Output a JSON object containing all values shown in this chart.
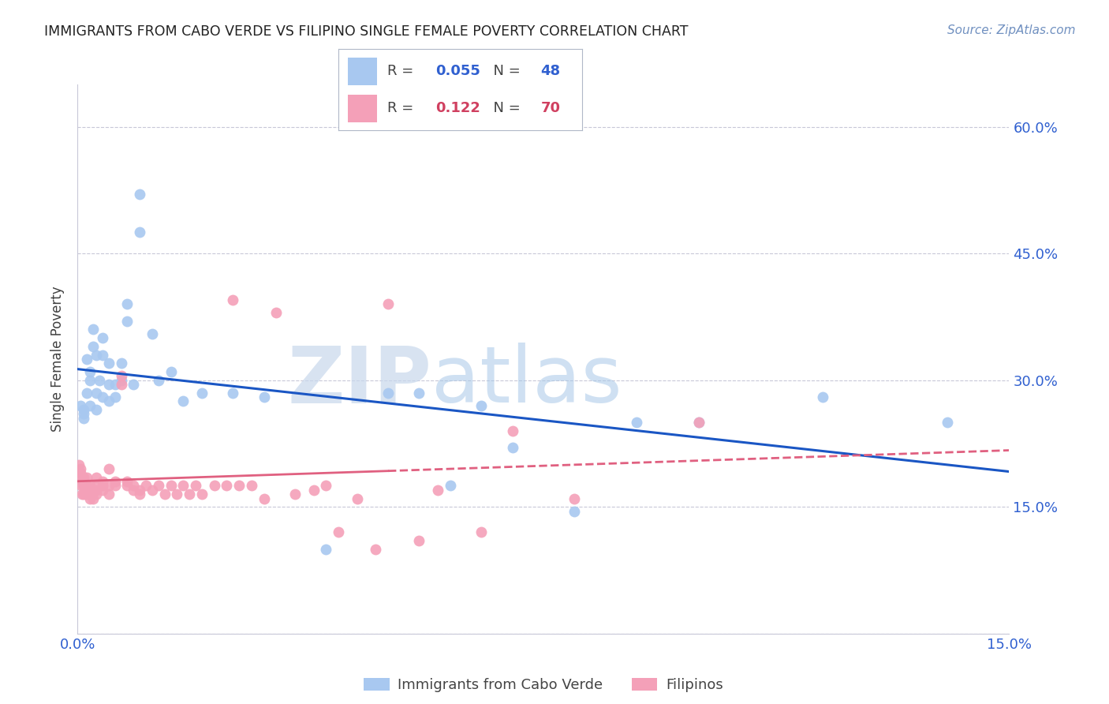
{
  "title": "IMMIGRANTS FROM CABO VERDE VS FILIPINO SINGLE FEMALE POVERTY CORRELATION CHART",
  "source": "Source: ZipAtlas.com",
  "ylabel": "Single Female Poverty",
  "yticks": [
    0.0,
    0.15,
    0.3,
    0.45,
    0.6
  ],
  "ytick_labels": [
    "",
    "15.0%",
    "30.0%",
    "45.0%",
    "60.0%"
  ],
  "xlim": [
    0.0,
    0.15
  ],
  "ylim": [
    0.0,
    0.65
  ],
  "legend1_r": "0.055",
  "legend1_n": "48",
  "legend2_r": "0.122",
  "legend2_n": "70",
  "blue_color": "#A8C8F0",
  "pink_color": "#F4A0B8",
  "line_blue": "#1A56C4",
  "line_pink": "#E06080",
  "watermark_zip": "ZIP",
  "watermark_atlas": "atlas",
  "legend_color": "#3060D0",
  "legend2_color": "#D04060",
  "cabo_verde_x": [
    0.0005,
    0.001,
    0.001,
    0.001,
    0.0015,
    0.0015,
    0.002,
    0.002,
    0.002,
    0.0025,
    0.0025,
    0.003,
    0.003,
    0.003,
    0.0035,
    0.004,
    0.004,
    0.004,
    0.005,
    0.005,
    0.005,
    0.006,
    0.006,
    0.007,
    0.007,
    0.008,
    0.008,
    0.009,
    0.01,
    0.01,
    0.012,
    0.013,
    0.015,
    0.017,
    0.02,
    0.025,
    0.03,
    0.04,
    0.05,
    0.055,
    0.06,
    0.065,
    0.07,
    0.08,
    0.09,
    0.1,
    0.12,
    0.14
  ],
  "cabo_verde_y": [
    0.27,
    0.265,
    0.255,
    0.26,
    0.325,
    0.285,
    0.27,
    0.3,
    0.31,
    0.34,
    0.36,
    0.33,
    0.285,
    0.265,
    0.3,
    0.28,
    0.33,
    0.35,
    0.295,
    0.275,
    0.32,
    0.28,
    0.295,
    0.3,
    0.32,
    0.37,
    0.39,
    0.295,
    0.52,
    0.475,
    0.355,
    0.3,
    0.31,
    0.275,
    0.285,
    0.285,
    0.28,
    0.1,
    0.285,
    0.285,
    0.175,
    0.27,
    0.22,
    0.145,
    0.25,
    0.25,
    0.28,
    0.25
  ],
  "filipino_x": [
    0.0002,
    0.0003,
    0.0004,
    0.0005,
    0.0006,
    0.0007,
    0.0008,
    0.001,
    0.001,
    0.001,
    0.0012,
    0.0013,
    0.0015,
    0.0015,
    0.0017,
    0.002,
    0.002,
    0.002,
    0.0022,
    0.0025,
    0.003,
    0.003,
    0.003,
    0.003,
    0.004,
    0.004,
    0.004,
    0.005,
    0.005,
    0.005,
    0.006,
    0.006,
    0.007,
    0.007,
    0.008,
    0.008,
    0.009,
    0.009,
    0.01,
    0.01,
    0.011,
    0.012,
    0.013,
    0.014,
    0.015,
    0.016,
    0.017,
    0.018,
    0.019,
    0.02,
    0.022,
    0.024,
    0.025,
    0.026,
    0.028,
    0.03,
    0.032,
    0.035,
    0.038,
    0.04,
    0.042,
    0.045,
    0.048,
    0.05,
    0.055,
    0.058,
    0.065,
    0.07,
    0.08,
    0.1
  ],
  "filipino_y": [
    0.2,
    0.185,
    0.19,
    0.195,
    0.175,
    0.165,
    0.18,
    0.185,
    0.175,
    0.165,
    0.17,
    0.165,
    0.185,
    0.175,
    0.165,
    0.16,
    0.17,
    0.175,
    0.165,
    0.16,
    0.185,
    0.175,
    0.17,
    0.165,
    0.175,
    0.17,
    0.18,
    0.165,
    0.175,
    0.195,
    0.175,
    0.18,
    0.295,
    0.305,
    0.175,
    0.18,
    0.17,
    0.175,
    0.17,
    0.165,
    0.175,
    0.17,
    0.175,
    0.165,
    0.175,
    0.165,
    0.175,
    0.165,
    0.175,
    0.165,
    0.175,
    0.175,
    0.395,
    0.175,
    0.175,
    0.16,
    0.38,
    0.165,
    0.17,
    0.175,
    0.12,
    0.16,
    0.1,
    0.39,
    0.11,
    0.17,
    0.12,
    0.24,
    0.16,
    0.25
  ]
}
